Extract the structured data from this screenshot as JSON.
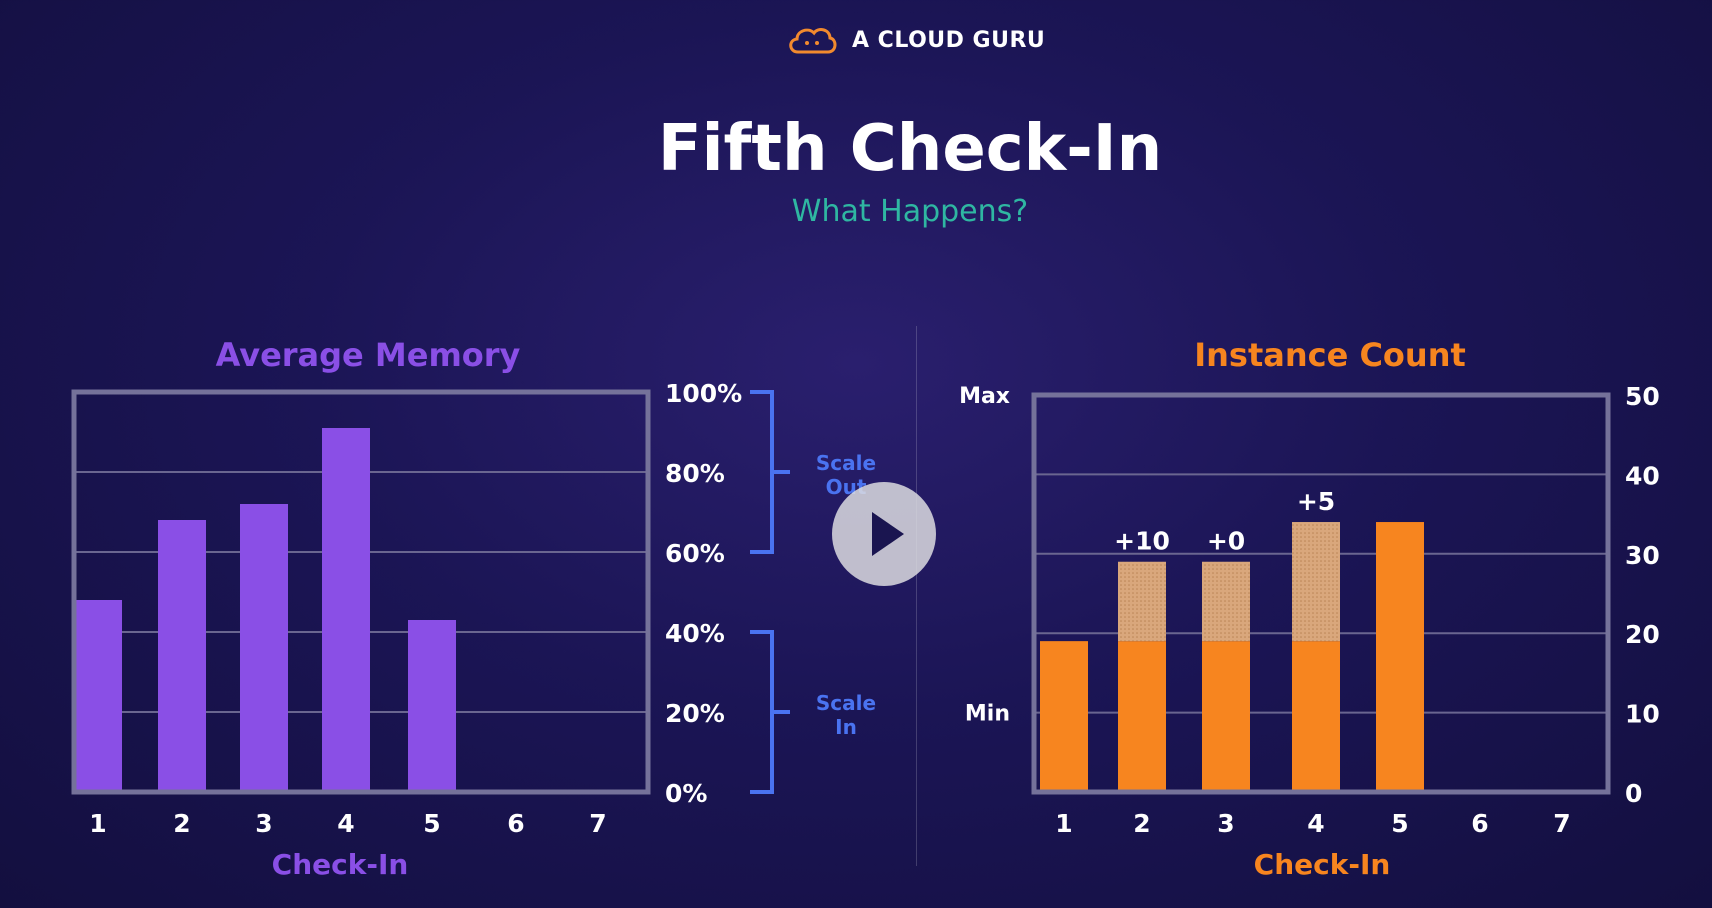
{
  "brand": {
    "name": "A CLOUD GURU",
    "logo_icon": "cloud-icon",
    "color": "#f28a2e"
  },
  "header": {
    "title": "Fifth Check-In",
    "subtitle": "What Happens?"
  },
  "player": {
    "play_icon": "play-icon"
  },
  "chart_data": [
    {
      "type": "bar",
      "title": "Average Memory",
      "xlabel": "Check-In",
      "categories": [
        "1",
        "2",
        "3",
        "4",
        "5",
        "6",
        "7"
      ],
      "values": [
        48,
        68,
        72,
        91,
        43,
        null,
        null
      ],
      "ylim": [
        0,
        100
      ],
      "y_ticks": [
        "0%",
        "20%",
        "40%",
        "60%",
        "80%",
        "100%"
      ],
      "y_tick_values": [
        0,
        20,
        40,
        60,
        80,
        100
      ],
      "brackets": [
        {
          "label": [
            "Scale",
            "Out"
          ],
          "range": [
            60,
            100
          ]
        },
        {
          "label": [
            "Scale",
            "In"
          ],
          "range": [
            0,
            40
          ]
        }
      ],
      "colors": {
        "bar": "#8a4fe6",
        "title": "#8a4fe6",
        "bracket": "#4a73f0"
      }
    },
    {
      "type": "bar",
      "title": "Instance Count",
      "xlabel": "Check-In",
      "categories": [
        "1",
        "2",
        "3",
        "4",
        "5",
        "6",
        "7"
      ],
      "values": [
        19,
        19,
        19,
        19,
        34,
        null,
        null
      ],
      "added": [
        0,
        10,
        10,
        15,
        0,
        null,
        null
      ],
      "annotations": [
        "",
        "+10",
        "+0",
        "+5",
        "",
        "",
        ""
      ],
      "ylim": [
        0,
        50
      ],
      "y_ticks": [
        "0",
        "10",
        "20",
        "30",
        "40",
        "50"
      ],
      "y_tick_values": [
        0,
        10,
        20,
        30,
        40,
        50
      ],
      "left_labels": [
        {
          "text": "Max",
          "value": 50
        },
        {
          "text": "Min",
          "value": 10
        }
      ],
      "colors": {
        "bar": "#f7851f",
        "added": "#d9a77c",
        "title": "#f7851f"
      }
    }
  ]
}
